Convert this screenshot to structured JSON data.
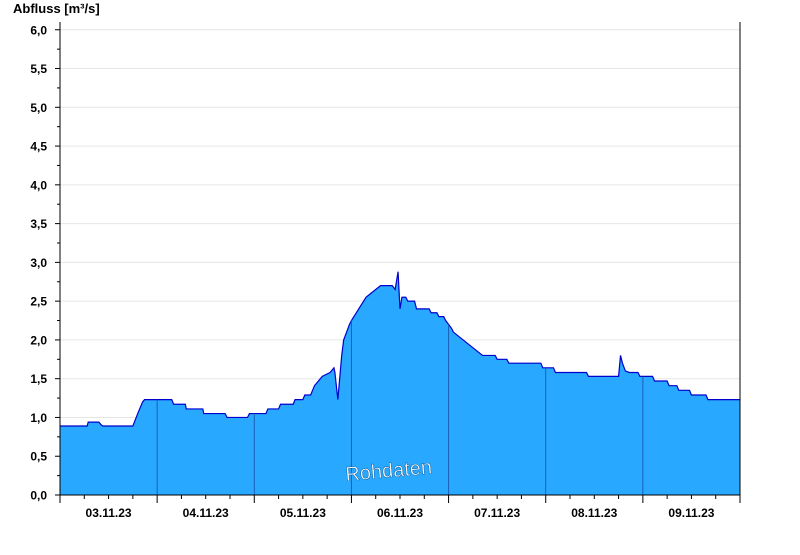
{
  "chart_data": {
    "type": "area",
    "ylabel": "Abfluss [m³/s]",
    "annotation": "Rohdaten",
    "ylim": [
      0,
      6.1
    ],
    "yticks": [
      "0,0",
      "0,5",
      "1,0",
      "1,5",
      "2,0",
      "2,5",
      "3,0",
      "3,5",
      "4,0",
      "4,5",
      "5,0",
      "5,5",
      "6,0"
    ],
    "ytick_values": [
      0,
      0.5,
      1.0,
      1.5,
      2.0,
      2.5,
      3.0,
      3.5,
      4.0,
      4.5,
      5.0,
      5.5,
      6.0
    ],
    "x_unit": "days",
    "xlim": [
      0,
      7
    ],
    "xticks": [
      "03.11.23",
      "04.11.23",
      "05.11.23",
      "06.11.23",
      "07.11.23",
      "08.11.23",
      "09.11.23"
    ],
    "grid": true,
    "colors": {
      "fill": "#29a8ff",
      "line": "#0000cc",
      "day_divider": "#1a5fb8",
      "grid": "#e6e6e6",
      "axis": "#000000",
      "annotation_text": "#ffffff"
    },
    "series": [
      {
        "values": [
          [
            0.0,
            0.89
          ],
          [
            0.28,
            0.89
          ],
          [
            0.29,
            0.94
          ],
          [
            0.4,
            0.94
          ],
          [
            0.42,
            0.91
          ],
          [
            0.44,
            0.89
          ],
          [
            0.75,
            0.89
          ],
          [
            0.8,
            1.05
          ],
          [
            0.85,
            1.2
          ],
          [
            0.87,
            1.23
          ],
          [
            1.15,
            1.23
          ],
          [
            1.17,
            1.17
          ],
          [
            1.29,
            1.17
          ],
          [
            1.3,
            1.11
          ],
          [
            1.47,
            1.11
          ],
          [
            1.48,
            1.05
          ],
          [
            1.7,
            1.05
          ],
          [
            1.72,
            1.0
          ],
          [
            1.93,
            1.0
          ],
          [
            1.95,
            1.05
          ],
          [
            2.12,
            1.05
          ],
          [
            2.14,
            1.11
          ],
          [
            2.25,
            1.11
          ],
          [
            2.27,
            1.17
          ],
          [
            2.4,
            1.17
          ],
          [
            2.42,
            1.23
          ],
          [
            2.5,
            1.23
          ],
          [
            2.52,
            1.29
          ],
          [
            2.58,
            1.29
          ],
          [
            2.6,
            1.35
          ],
          [
            2.62,
            1.41
          ],
          [
            2.66,
            1.47
          ],
          [
            2.7,
            1.53
          ],
          [
            2.78,
            1.58
          ],
          [
            2.82,
            1.64
          ],
          [
            2.83,
            1.58
          ],
          [
            2.86,
            1.23
          ],
          [
            2.9,
            1.8
          ],
          [
            2.92,
            2.0
          ],
          [
            2.95,
            2.1
          ],
          [
            2.98,
            2.2
          ],
          [
            3.0,
            2.25
          ],
          [
            3.05,
            2.35
          ],
          [
            3.1,
            2.45
          ],
          [
            3.15,
            2.55
          ],
          [
            3.2,
            2.6
          ],
          [
            3.25,
            2.65
          ],
          [
            3.3,
            2.7
          ],
          [
            3.42,
            2.7
          ],
          [
            3.45,
            2.65
          ],
          [
            3.48,
            2.88
          ],
          [
            3.5,
            2.4
          ],
          [
            3.52,
            2.55
          ],
          [
            3.56,
            2.55
          ],
          [
            3.58,
            2.5
          ],
          [
            3.65,
            2.5
          ],
          [
            3.67,
            2.4
          ],
          [
            3.8,
            2.4
          ],
          [
            3.82,
            2.35
          ],
          [
            3.88,
            2.35
          ],
          [
            3.9,
            2.3
          ],
          [
            3.95,
            2.3
          ],
          [
            3.97,
            2.25
          ],
          [
            4.0,
            2.2
          ],
          [
            4.03,
            2.15
          ],
          [
            4.05,
            2.1
          ],
          [
            4.1,
            2.05
          ],
          [
            4.15,
            2.0
          ],
          [
            4.2,
            1.95
          ],
          [
            4.25,
            1.9
          ],
          [
            4.3,
            1.85
          ],
          [
            4.35,
            1.8
          ],
          [
            4.48,
            1.8
          ],
          [
            4.5,
            1.75
          ],
          [
            4.6,
            1.75
          ],
          [
            4.62,
            1.7
          ],
          [
            4.95,
            1.7
          ],
          [
            4.97,
            1.64
          ],
          [
            5.08,
            1.64
          ],
          [
            5.1,
            1.58
          ],
          [
            5.42,
            1.58
          ],
          [
            5.44,
            1.53
          ],
          [
            5.75,
            1.53
          ],
          [
            5.77,
            1.8
          ],
          [
            5.79,
            1.7
          ],
          [
            5.82,
            1.6
          ],
          [
            5.86,
            1.58
          ],
          [
            5.95,
            1.58
          ],
          [
            5.97,
            1.53
          ],
          [
            6.1,
            1.53
          ],
          [
            6.12,
            1.47
          ],
          [
            6.25,
            1.47
          ],
          [
            6.27,
            1.41
          ],
          [
            6.35,
            1.41
          ],
          [
            6.37,
            1.35
          ],
          [
            6.48,
            1.35
          ],
          [
            6.5,
            1.29
          ],
          [
            6.65,
            1.29
          ],
          [
            6.67,
            1.23
          ],
          [
            7.0,
            1.23
          ]
        ]
      }
    ]
  }
}
